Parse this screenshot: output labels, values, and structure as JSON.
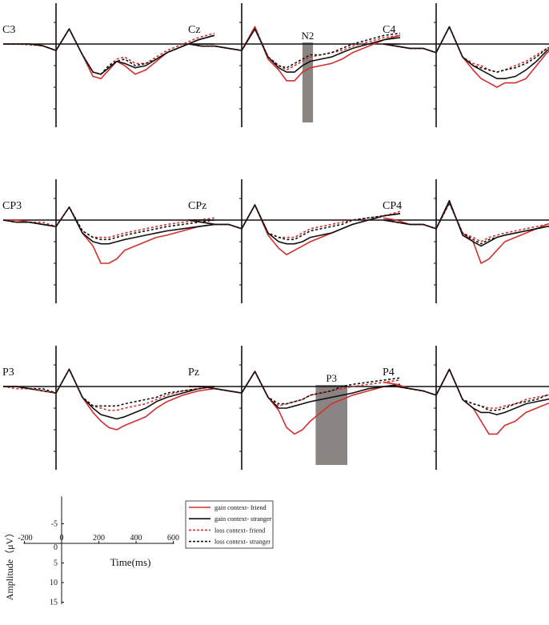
{
  "chart_data": {
    "type": "line",
    "x_unit": "ms",
    "xlim": [
      -200,
      600
    ],
    "ylim": [
      15,
      -10
    ],
    "y_inverted": true,
    "legend": {
      "placement": "bottom-center",
      "items": [
        {
          "label": "gain context- friend",
          "color": "#d0312d",
          "style": "solid"
        },
        {
          "label": "gain context- stranger",
          "color": "#111111",
          "style": "solid"
        },
        {
          "label": "loss context- friend",
          "color": "#d0312d",
          "style": "dashed"
        },
        {
          "label": "loss context- stranger",
          "color": "#111111",
          "style": "dashed"
        }
      ]
    },
    "scale_axes": {
      "xlabel": "Time(ms)",
      "ylabel": "Amplitude（μV）",
      "x_ticks": [
        "-200",
        "0",
        "200",
        "400",
        "600"
      ],
      "x_tick_values": [
        -200,
        0,
        200,
        400,
        600
      ],
      "y_ticks": [
        "-5",
        "0",
        "5",
        "10",
        "15"
      ],
      "y_tick_values": [
        -5,
        0,
        5,
        10,
        15
      ]
    },
    "x": [
      -200,
      -150,
      -100,
      -50,
      0,
      50,
      100,
      140,
      170,
      200,
      230,
      260,
      300,
      340,
      380,
      420,
      480,
      540,
      600
    ],
    "panels": [
      {
        "electrode": "C3",
        "series": [
          [
            0,
            0,
            0,
            0.4,
            1.5,
            -3.5,
            2.5,
            7.5,
            8,
            6,
            4,
            5,
            7,
            6,
            4,
            2,
            0.5,
            -1,
            -2
          ],
          [
            0,
            0,
            0,
            0.4,
            1.5,
            -3.5,
            2.5,
            6.5,
            7,
            5.5,
            4,
            4.5,
            5.5,
            5,
            3.5,
            2,
            0.5,
            -1,
            -2
          ],
          [
            0,
            0,
            0.2,
            0.4,
            1.5,
            -3.5,
            2.5,
            6.5,
            7,
            5,
            3.5,
            3,
            4.5,
            4.5,
            3,
            1.5,
            0,
            -1.5,
            -2.5
          ],
          [
            0,
            0,
            0,
            0.4,
            1.5,
            -3.5,
            2.5,
            6.5,
            7,
            5,
            4,
            3.5,
            5,
            4.5,
            3.5,
            2,
            0.5,
            -1,
            -2
          ]
        ]
      },
      {
        "electrode": "Cz",
        "series": [
          [
            0,
            0.5,
            0.5,
            1,
            1.5,
            -4,
            3.5,
            6,
            8.5,
            8.5,
            6.5,
            5.5,
            5,
            4.5,
            3.5,
            2,
            0.5,
            -1,
            -2
          ],
          [
            0,
            0.5,
            0.5,
            1,
            1.5,
            -3.5,
            3,
            5.5,
            6.5,
            6.5,
            5,
            4,
            3.5,
            3,
            2,
            1,
            0,
            -1,
            -1.5
          ],
          [
            0,
            0.5,
            0.5,
            1,
            1.5,
            -4,
            3,
            5,
            6,
            5,
            4,
            3,
            2.5,
            2,
            1.5,
            0.5,
            -0.5,
            -1.5,
            -2
          ],
          [
            0,
            0.5,
            0.5,
            1,
            1.5,
            -3.5,
            3,
            5,
            5.5,
            4.5,
            3.5,
            2.5,
            2.5,
            2,
            1,
            0,
            -1,
            -2,
            -2.5
          ]
        ]
      },
      {
        "electrode": "C4",
        "series": [
          [
            0,
            0.5,
            1,
            1,
            2,
            -4,
            3,
            6,
            8,
            9,
            10,
            9,
            9,
            8,
            5,
            2,
            0,
            -1,
            -1.5
          ],
          [
            0,
            0.5,
            1,
            1,
            2,
            -4,
            3,
            5,
            6,
            7,
            8,
            8,
            7.5,
            6,
            4,
            1.5,
            0,
            -1,
            -1.5
          ],
          [
            0,
            0.5,
            1,
            1,
            2,
            -4,
            3,
            4.5,
            5,
            6,
            6.5,
            6,
            5,
            4,
            2.5,
            1,
            0,
            -1,
            -1.5
          ],
          [
            0,
            0.5,
            1,
            1,
            2,
            -4,
            3,
            5,
            5.5,
            6,
            6.5,
            6,
            5.5,
            4.5,
            3,
            1,
            0,
            -1,
            -1.5
          ]
        ]
      },
      {
        "electrode": "CP3",
        "series": [
          [
            0,
            0,
            0.5,
            1,
            1.5,
            -3,
            3,
            6,
            10,
            10,
            9,
            7,
            6,
            5,
            4,
            3.5,
            2.5,
            1.5,
            1
          ],
          [
            0,
            0.5,
            0.5,
            1,
            1.5,
            -3,
            3,
            5,
            5.5,
            5.5,
            5,
            4.5,
            4,
            3.5,
            3,
            2.5,
            2,
            1.5,
            1
          ],
          [
            0,
            0,
            0.5,
            0.5,
            1.5,
            -3,
            2.5,
            4,
            4,
            4,
            3.5,
            3,
            2.5,
            2,
            1.5,
            1,
            0.5,
            0,
            -0.5
          ],
          [
            0,
            0.5,
            0.5,
            1,
            1.5,
            -3,
            2.5,
            4,
            4.5,
            4.5,
            4,
            3.5,
            3,
            2.5,
            2,
            1.5,
            1,
            0.5,
            0
          ]
        ]
      },
      {
        "electrode": "CPz",
        "series": [
          [
            0,
            0.5,
            1,
            1,
            2,
            -3.5,
            3.5,
            6.5,
            8,
            7,
            6,
            5,
            4,
            3,
            2,
            1,
            0,
            -1,
            -1.5
          ],
          [
            0,
            0.5,
            1,
            1,
            2,
            -3.5,
            3,
            5,
            5.5,
            5.5,
            5,
            4,
            3.5,
            3,
            2,
            1,
            0,
            -1,
            -1.5
          ],
          [
            0,
            0.5,
            1,
            1,
            2,
            -3.5,
            3,
            4,
            4,
            4,
            3,
            2,
            1.5,
            1,
            0.5,
            0,
            -0.5,
            -1,
            -2
          ],
          [
            0,
            0.5,
            1,
            1,
            2,
            -3.5,
            3,
            4,
            4.5,
            4.5,
            3.5,
            2.5,
            2,
            1.5,
            1,
            0,
            -0.5,
            -1,
            -1.5
          ]
        ]
      },
      {
        "electrode": "CP4",
        "series": [
          [
            -0.5,
            0,
            1,
            1,
            2,
            -4,
            3,
            5,
            10,
            9,
            7,
            5,
            4,
            3,
            2,
            1,
            0,
            -0.5,
            -1
          ],
          [
            0,
            0.5,
            1,
            1,
            2,
            -4.5,
            3.5,
            5,
            6,
            5,
            4,
            3.5,
            3,
            2.5,
            2,
            1.5,
            1,
            0.5,
            0
          ],
          [
            0,
            0.5,
            1,
            1,
            2,
            -4,
            3,
            4,
            5,
            4,
            3.5,
            3,
            2.5,
            2,
            1.5,
            1,
            0.5,
            0,
            -0.5
          ],
          [
            0,
            0.5,
            1,
            1,
            2,
            -4,
            3,
            4.5,
            5.5,
            4.5,
            4,
            3.5,
            3,
            2.5,
            2,
            1.5,
            1,
            0.5,
            0
          ]
        ]
      },
      {
        "electrode": "P3",
        "series": [
          [
            0,
            0,
            0.5,
            1,
            1.5,
            -4,
            2.5,
            6,
            8,
            9.5,
            10,
            9,
            8,
            7,
            5,
            3.5,
            2,
            1,
            0.5
          ],
          [
            0,
            0,
            0.5,
            1,
            1.5,
            -4,
            2.5,
            5,
            6.5,
            7,
            7.5,
            7,
            6,
            5,
            3.5,
            2.5,
            1.5,
            0.5,
            0
          ],
          [
            0,
            0.5,
            0.5,
            1,
            1.5,
            -4,
            2.5,
            4.5,
            5,
            5.5,
            5.5,
            5,
            4.5,
            4,
            3,
            2,
            1,
            0.5,
            0
          ],
          [
            0,
            0,
            0.5,
            0.5,
            1.5,
            -4,
            2.5,
            4.5,
            4.5,
            4.5,
            4.5,
            4,
            3.5,
            3,
            2.5,
            1.5,
            1,
            0.5,
            0
          ]
        ]
      },
      {
        "electrode": "Pz",
        "series": [
          [
            0,
            0,
            0.5,
            1,
            1.5,
            -3.5,
            2.5,
            5.5,
            9.5,
            11,
            10,
            8,
            6,
            4,
            3,
            2,
            1,
            0,
            -0.5
          ],
          [
            0,
            0,
            0.5,
            1,
            1.5,
            -3.5,
            2.5,
            5,
            5,
            4.5,
            4,
            3.5,
            3,
            2.5,
            2,
            1.5,
            0.5,
            0,
            -0.5
          ],
          [
            0,
            0,
            0.5,
            1,
            1.5,
            -3.5,
            2.5,
            4.5,
            4,
            3.5,
            3,
            2,
            1.5,
            1,
            0.5,
            0,
            -0.5,
            -1,
            -1.5
          ],
          [
            0,
            0,
            0.5,
            1,
            1.5,
            -3.5,
            2.5,
            4,
            4,
            3.5,
            3,
            2,
            1.5,
            1,
            0,
            -0.5,
            -1,
            -1.5,
            -2
          ]
        ]
      },
      {
        "electrode": "P4",
        "series": [
          [
            -1,
            -0.5,
            0.5,
            1,
            2,
            -4,
            3,
            5,
            8,
            11,
            11,
            9,
            8,
            6,
            5,
            4,
            3,
            2,
            1.5
          ],
          [
            0,
            0,
            0.5,
            1,
            2,
            -4,
            3,
            5,
            6,
            6,
            6.5,
            6,
            5,
            4,
            3.5,
            3,
            2,
            1.5,
            1
          ],
          [
            0,
            0,
            0.5,
            1,
            2,
            -4,
            3,
            4,
            4.5,
            5,
            5,
            4.5,
            4,
            3,
            2.5,
            2,
            1,
            0.5,
            0
          ],
          [
            0,
            0,
            0.5,
            1,
            2,
            -4,
            3,
            4,
            4.5,
            5.5,
            5.5,
            5,
            4,
            3.5,
            3,
            2,
            1.5,
            1,
            0.5
          ]
        ]
      }
    ],
    "annotations": [
      {
        "panel": "Cz",
        "label": "N2",
        "x_range": [
          230,
          270
        ]
      },
      {
        "panel": "Pz",
        "label": "P3",
        "x_range": [
          280,
          400
        ]
      }
    ]
  },
  "colors": {
    "friend": "#d0312d",
    "stranger": "#111111",
    "shade": "#8a8583",
    "axis": "#111111"
  }
}
